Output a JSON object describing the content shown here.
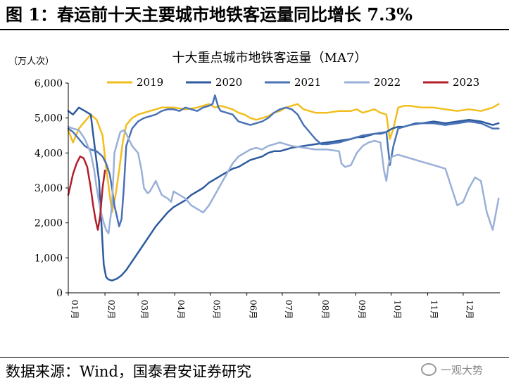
{
  "figure": {
    "title": "图 1：春运前十天主要城市地铁客运量同比增长 7.3%",
    "source": "数据来源：Wind，国泰君安证券研究",
    "watermark": "一观大势"
  },
  "colors": {
    "2019": "#F2BE1E",
    "2020": "#2D5B9E",
    "2021": "#4A72B5",
    "2022": "#9AB0D8",
    "2023": "#B01E2A"
  },
  "chart_data": {
    "type": "line",
    "title": "十大重点城市地铁客运量（MA7）",
    "ylabel": "（万人次）",
    "ylim": [
      0,
      6000
    ],
    "yticks": [
      0,
      1000,
      2000,
      3000,
      4000,
      5000,
      6000
    ],
    "ytick_labels": [
      "0",
      "1,000",
      "2,000",
      "3,000",
      "4,000",
      "5,000",
      "6,000"
    ],
    "x_unit": "day_of_year",
    "xlim": [
      1,
      366
    ],
    "months": [
      "01月",
      "02月",
      "03月",
      "04月",
      "05月",
      "06月",
      "07月",
      "08月",
      "09月",
      "10月",
      "11月",
      "12月"
    ],
    "month_starts": [
      1,
      32,
      60,
      91,
      121,
      152,
      182,
      213,
      244,
      274,
      305,
      335
    ],
    "legend_position": "top",
    "series": [
      {
        "name": "2019",
        "key": "2019",
        "x": [
          1,
          5,
          10,
          15,
          20,
          25,
          30,
          33,
          36,
          38,
          41,
          44,
          47,
          50,
          55,
          60,
          65,
          70,
          75,
          80,
          90,
          100,
          110,
          120,
          125,
          130,
          140,
          145,
          150,
          155,
          160,
          165,
          170,
          175,
          180,
          185,
          190,
          195,
          200,
          205,
          210,
          220,
          230,
          240,
          245,
          250,
          255,
          260,
          265,
          270,
          273,
          276,
          280,
          285,
          290,
          300,
          310,
          320,
          330,
          340,
          350,
          360,
          365
        ],
        "y": [
          4650,
          4300,
          4700,
          4900,
          5100,
          4950,
          4500,
          3600,
          2800,
          2300,
          2800,
          3500,
          4300,
          4800,
          5000,
          5100,
          5150,
          5200,
          5250,
          5300,
          5300,
          5250,
          5300,
          5400,
          5300,
          5350,
          5250,
          5150,
          5100,
          5000,
          4950,
          5000,
          5050,
          5150,
          5200,
          5300,
          5350,
          5400,
          5250,
          5200,
          5150,
          5150,
          5200,
          5200,
          5250,
          5150,
          5200,
          5250,
          5150,
          5100,
          4400,
          4700,
          5300,
          5350,
          5350,
          5300,
          5300,
          5250,
          5200,
          5250,
          5200,
          5300,
          5400
        ]
      },
      {
        "name": "2020",
        "key": "2020",
        "x": [
          1,
          5,
          10,
          15,
          20,
          24,
          27,
          29,
          31,
          33,
          35,
          38,
          42,
          46,
          50,
          55,
          60,
          65,
          70,
          75,
          80,
          85,
          90,
          95,
          100,
          105,
          110,
          115,
          120,
          125,
          130,
          135,
          140,
          145,
          150,
          155,
          160,
          165,
          170,
          175,
          180,
          185,
          190,
          200,
          210,
          220,
          230,
          240,
          245,
          250,
          255,
          260,
          265,
          270,
          275,
          280,
          285,
          290,
          295,
          300,
          310,
          320,
          330,
          340,
          350,
          360,
          365
        ],
        "y": [
          5200,
          5100,
          5300,
          5200,
          5100,
          4000,
          3200,
          2000,
          800,
          450,
          380,
          350,
          400,
          500,
          650,
          900,
          1150,
          1400,
          1650,
          1900,
          2100,
          2300,
          2450,
          2550,
          2650,
          2800,
          2900,
          3000,
          3150,
          3250,
          3350,
          3450,
          3550,
          3600,
          3700,
          3800,
          3850,
          3900,
          4000,
          4050,
          4050,
          4100,
          4150,
          4200,
          4250,
          4300,
          4350,
          4400,
          4450,
          4450,
          4500,
          4550,
          4550,
          4600,
          4700,
          4750,
          4750,
          4800,
          4850,
          4850,
          4900,
          4850,
          4900,
          4950,
          4900,
          4800,
          4850
        ]
      },
      {
        "name": "2021",
        "key": "2021",
        "x": [
          1,
          5,
          10,
          15,
          20,
          25,
          30,
          33,
          36,
          38,
          40,
          42,
          44,
          46,
          48,
          50,
          55,
          60,
          65,
          70,
          75,
          80,
          85,
          90,
          95,
          100,
          105,
          110,
          115,
          120,
          123,
          125,
          128,
          130,
          135,
          140,
          145,
          150,
          155,
          160,
          165,
          170,
          175,
          180,
          185,
          190,
          195,
          200,
          205,
          210,
          215,
          220,
          230,
          240,
          250,
          260,
          270,
          273,
          276,
          280,
          285,
          290,
          300,
          310,
          320,
          330,
          340,
          350,
          360,
          365
        ],
        "y": [
          4700,
          4600,
          4400,
          4200,
          4100,
          4050,
          3900,
          3700,
          3400,
          3000,
          2500,
          2200,
          1900,
          2100,
          3000,
          4200,
          4700,
          4900,
          5000,
          5050,
          5100,
          5200,
          5250,
          5250,
          5200,
          5300,
          5250,
          5200,
          5300,
          5350,
          5400,
          5650,
          5300,
          5200,
          5150,
          5100,
          4900,
          4850,
          4800,
          4850,
          4900,
          5000,
          5150,
          5250,
          5300,
          5250,
          5100,
          4800,
          4600,
          4400,
          4250,
          4250,
          4300,
          4400,
          4500,
          4550,
          4600,
          3650,
          4200,
          4700,
          4750,
          4800,
          4850,
          4850,
          4800,
          4850,
          4900,
          4850,
          4700,
          4700
        ]
      },
      {
        "name": "2022",
        "key": "2022",
        "x": [
          1,
          5,
          10,
          15,
          20,
          23,
          25,
          28,
          31,
          33,
          35,
          38,
          40,
          45,
          48,
          50,
          55,
          60,
          63,
          65,
          68,
          70,
          75,
          80,
          85,
          88,
          90,
          95,
          100,
          105,
          110,
          115,
          120,
          125,
          130,
          135,
          140,
          145,
          150,
          155,
          160,
          165,
          170,
          175,
          180,
          185,
          190,
          200,
          210,
          220,
          230,
          232,
          235,
          240,
          245,
          250,
          255,
          260,
          265,
          268,
          270,
          272,
          275,
          280,
          285,
          290,
          300,
          310,
          320,
          330,
          335,
          340,
          345,
          350,
          355,
          360,
          365
        ],
        "y": [
          4750,
          4700,
          4650,
          4400,
          4000,
          3500,
          3000,
          2400,
          2000,
          1800,
          1700,
          2500,
          4000,
          4600,
          4650,
          4550,
          4200,
          4000,
          3500,
          3000,
          2850,
          2900,
          3200,
          2800,
          2700,
          2600,
          2900,
          2800,
          2700,
          2500,
          2400,
          2300,
          2500,
          2800,
          3100,
          3400,
          3700,
          3900,
          4000,
          4100,
          4150,
          4100,
          4200,
          4250,
          4300,
          4250,
          4200,
          4150,
          4100,
          4100,
          4050,
          3700,
          3600,
          3650,
          4000,
          4200,
          4300,
          4350,
          4300,
          3500,
          3200,
          3700,
          3900,
          3950,
          3900,
          3850,
          3750,
          3650,
          3550,
          2500,
          2600,
          3000,
          3300,
          3200,
          2300,
          1800,
          2700
        ]
      },
      {
        "name": "2023",
        "key": "2023",
        "x": [
          1,
          3,
          5,
          8,
          11,
          14,
          17,
          20,
          22,
          24,
          26,
          28,
          30,
          32
        ],
        "y": [
          2800,
          3100,
          3400,
          3700,
          3900,
          3850,
          3600,
          3000,
          2500,
          2100,
          1800,
          2200,
          3000,
          3500
        ]
      }
    ]
  }
}
